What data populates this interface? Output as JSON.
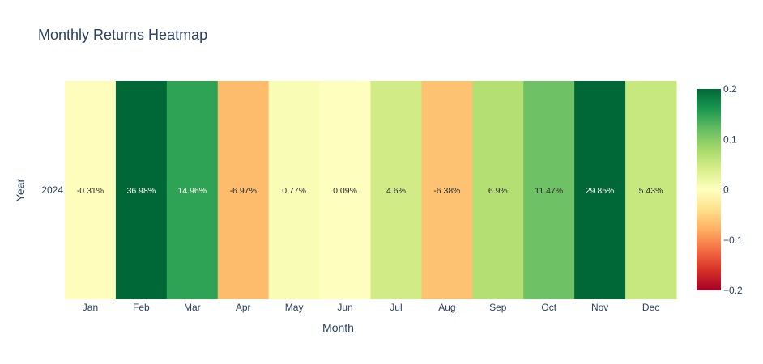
{
  "chart_data": {
    "type": "heatmap",
    "title": "Monthly Returns Heatmap",
    "xlabel": "Month",
    "ylabel": "Year",
    "x": [
      "Jan",
      "Feb",
      "Mar",
      "Apr",
      "May",
      "Jun",
      "Jul",
      "Aug",
      "Sep",
      "Oct",
      "Nov",
      "Dec"
    ],
    "y": [
      "2024"
    ],
    "values": [
      [
        -0.0031,
        0.3698,
        0.1496,
        -0.0697,
        0.0077,
        0.0009,
        0.046,
        -0.0638,
        0.069,
        0.1147,
        0.2985,
        0.0543
      ]
    ],
    "cell_labels": [
      [
        "-0.31%",
        "36.98%",
        "14.96%",
        "-6.97%",
        "0.77%",
        "0.09%",
        "4.6%",
        "-6.38%",
        "6.9%",
        "11.47%",
        "29.85%",
        "5.43%"
      ]
    ],
    "colorscale": "RdYlGn",
    "zmin": -0.2,
    "zmax": 0.2,
    "colorbar": {
      "ticks": [
        0.2,
        0.1,
        0,
        -0.1,
        -0.2
      ],
      "ticklabels": [
        "0.2",
        "0.1",
        "0",
        "−0.1",
        "−0.2"
      ]
    }
  }
}
